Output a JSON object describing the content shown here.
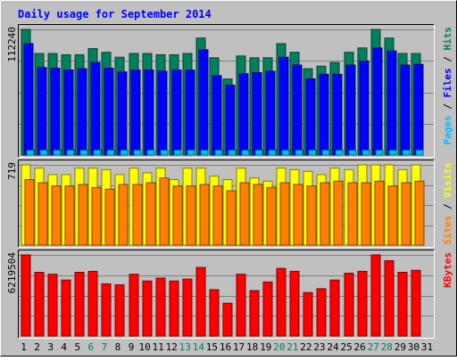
{
  "chart_data": {
    "type": "bar",
    "title": "Daily usage for September 2014",
    "categories": [
      "1",
      "2",
      "3",
      "4",
      "5",
      "6",
      "7",
      "8",
      "9",
      "10",
      "11",
      "12",
      "13",
      "14",
      "15",
      "16",
      "17",
      "18",
      "19",
      "20",
      "21",
      "22",
      "23",
      "24",
      "25",
      "26",
      "27",
      "28",
      "29",
      "30",
      "31"
    ],
    "weekend_days": [
      6,
      7,
      13,
      14,
      20,
      21,
      27,
      28
    ],
    "colors": {
      "hits": "#00805c",
      "files": "#0000ff",
      "pages": "#00c0ff",
      "visits": "#ffff00",
      "sites": "#ff8000",
      "kbytes": "#ff0000",
      "title": "#0000ff",
      "background": "#c0c0c0",
      "weekend_label": "#00805c"
    },
    "panels": [
      {
        "id": "hits-files-pages",
        "max_label": "112240",
        "ymax": 112240,
        "series": [
          {
            "name": "Hits",
            "color": "#00805c",
            "values": [
              112240,
              90700,
              90700,
              89600,
              89600,
              95100,
              91800,
              87400,
              90700,
              90700,
              89600,
              89600,
              90700,
              104500,
              86900,
              67900,
              88500,
              86900,
              86900,
              99500,
              91800,
              77100,
              79400,
              82700,
              91800,
              95700,
              112240,
              104500,
              90700,
              90700,
              0
            ]
          },
          {
            "name": "Files",
            "color": "#0000ff",
            "values": [
              99500,
              78200,
              77600,
              76000,
              77100,
              82700,
              77600,
              74300,
              75900,
              76000,
              74900,
              75900,
              75900,
              94000,
              70900,
              62400,
              72700,
              73700,
              74900,
              87400,
              80400,
              68100,
              72200,
              72200,
              80400,
              83800,
              95700,
              93000,
              80400,
              81000,
              0
            ]
          },
          {
            "name": "Pages",
            "color": "#00c0ff",
            "values": [
              4500,
              4500,
              4500,
              4500,
              4500,
              4500,
              4500,
              4500,
              4500,
              4500,
              4500,
              4500,
              4500,
              4500,
              4500,
              4500,
              4500,
              4500,
              4500,
              4500,
              4500,
              4500,
              4500,
              4500,
              4500,
              4500,
              4500,
              4500,
              4500,
              4500,
              0
            ]
          }
        ],
        "legend": [
          "Pages",
          "Files",
          "Hits"
        ],
        "legend_separator": " / "
      },
      {
        "id": "visits-sites",
        "max_label": "719",
        "ymax": 719,
        "series": [
          {
            "name": "Visits",
            "color": "#ffff00",
            "values": [
              719,
              690,
              632,
              632,
              690,
              690,
              676,
              632,
              690,
              648,
              690,
              587,
              690,
              690,
              618,
              587,
              690,
              602,
              573,
              690,
              676,
              661,
              632,
              690,
              676,
              719,
              719,
              719,
              676,
              719,
              0
            ]
          },
          {
            "name": "Sites",
            "color": "#ff8000",
            "values": [
              587,
              559,
              530,
              530,
              544,
              516,
              502,
              544,
              544,
              559,
              602,
              530,
              530,
              544,
              530,
              487,
              559,
              544,
              516,
              559,
              544,
              530,
              559,
              573,
              559,
              559,
              573,
              530,
              559,
              573,
              0
            ]
          }
        ],
        "legend": [
          "Sites",
          "Visits"
        ],
        "legend_separator": " / "
      },
      {
        "id": "kbytes",
        "max_label": "6219504",
        "ymax": 6219504,
        "series": [
          {
            "name": "KBytes",
            "color": "#ff0000",
            "values": [
              6219504,
              4886756,
              4738673,
              4294422,
              4886756,
              4960798,
              3998257,
              3924215,
              4738673,
              4220381,
              4442505,
              4220381,
              4368464,
              5256965,
              3554007,
              2517424,
              4738673,
              3480966,
              4146340,
              5183924,
              4960798,
              3332883,
              3628048,
              4294422,
              4812715,
              4960798,
              6219504,
              5775253,
              4886756,
              5035840,
              0
            ]
          }
        ],
        "legend": [
          "KBytes"
        ],
        "legend_separator": ""
      }
    ]
  }
}
